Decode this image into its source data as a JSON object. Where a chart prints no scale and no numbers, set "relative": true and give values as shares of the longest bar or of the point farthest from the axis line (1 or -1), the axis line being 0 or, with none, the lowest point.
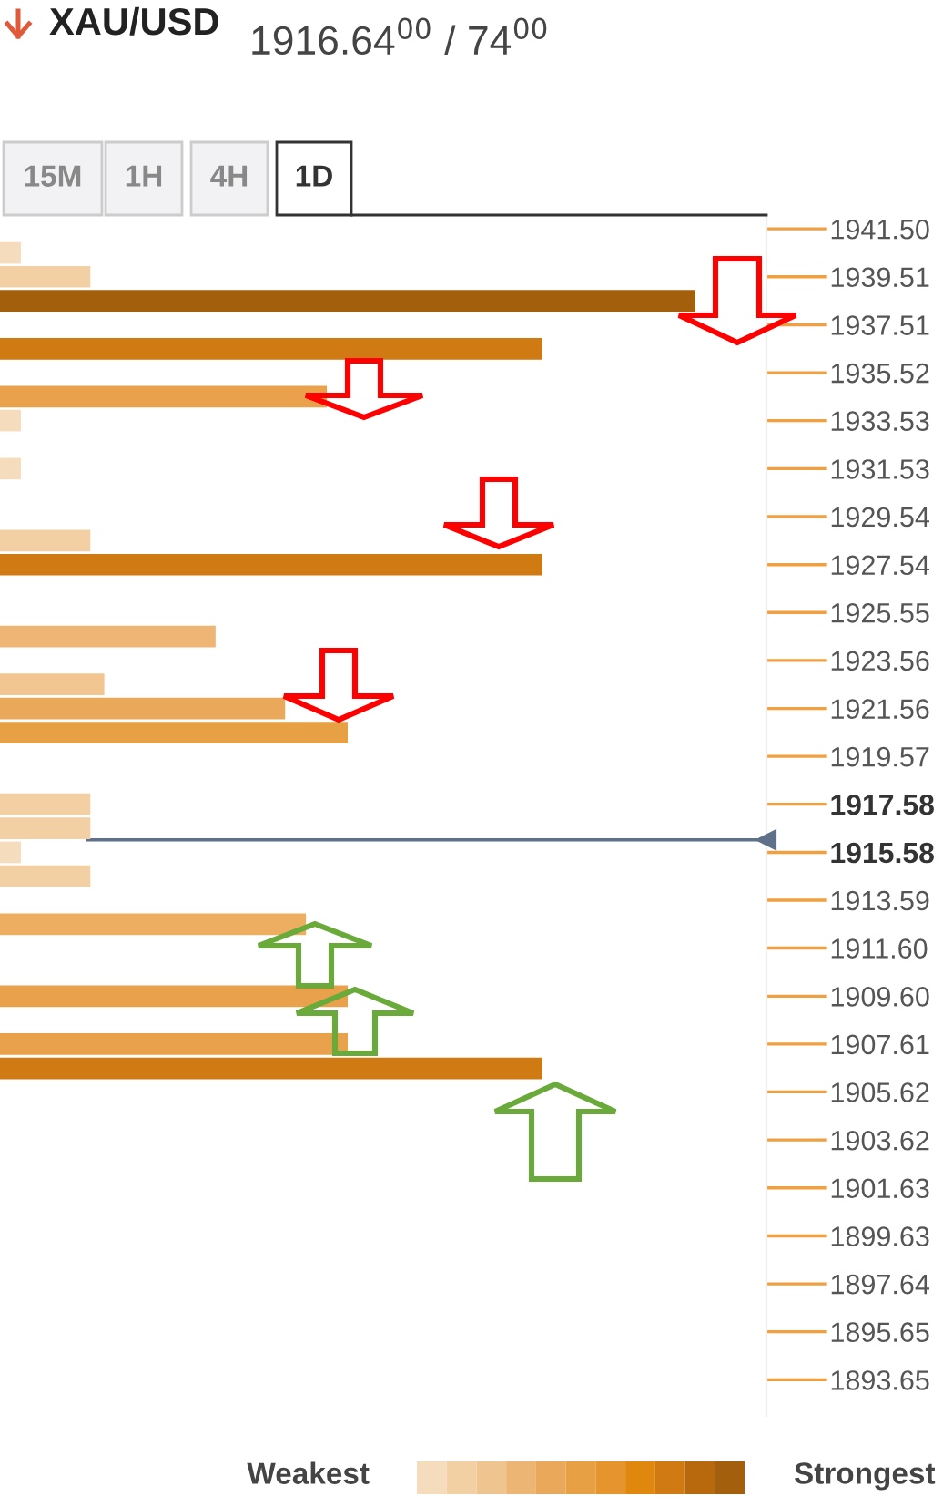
{
  "chart_data": {
    "type": "bar",
    "orientation": "horizontal",
    "relative": true,
    "title": "XAU/USD",
    "subtitle": "1916.64$^{00}$ / 74$^{00}$",
    "annotations": [
      "15M",
      "1H",
      "4H",
      "1D",
      "Weakest",
      "Strongest"
    ],
    "x": [
      1940.5,
      1939.51,
      1938.51,
      1936.51,
      1934.52,
      1933.53,
      1931.53,
      1928.54,
      1927.54,
      1924.55,
      1922.56,
      1921.56,
      1920.56,
      1917.58,
      1916.58,
      1915.58,
      1914.59,
      1912.59,
      1909.6,
      1907.61,
      1906.6
    ],
    "values": [
      0.03,
      0.13,
      1,
      0.78,
      0.47,
      0.03,
      0.03,
      0.13,
      0.78,
      0.31,
      0.15,
      0.41,
      0.5,
      0.13,
      0.13,
      0.03,
      0.13,
      0.44,
      0.5,
      0.5,
      0.78
    ],
    "colors": [
      "#f5dcbd",
      "#f3cfa4",
      "#a35f0b",
      "#cf7a12",
      "#e9a24b",
      "#f5dcbd",
      "#f5dcbd",
      "#f3cfa4",
      "#cf7a12",
      "#eeb574",
      "#f2c690",
      "#eaa95a",
      "#e8a044",
      "#f3cfa4",
      "#f3cfa4",
      "#f5dcbd",
      "#f3cfa4",
      "#edae62",
      "#e9a24b",
      "#e9a24b",
      "#cf7a12"
    ],
    "ylim": [
      1892.15,
      1942.0
    ],
    "yticks": [
      {
        "value": 1941.5,
        "label": "1941.50"
      },
      1939.51,
      1937.51,
      1935.52,
      1933.53,
      1931.53,
      1929.54,
      1927.54,
      1925.55,
      1923.56,
      1921.56,
      1919.57,
      1917.58,
      1915.58,
      1913.59,
      {
        "value": 1911.6,
        "label": "1911.60"
      },
      {
        "value": 1909.6,
        "label": "1909.60"
      },
      1907.61,
      1905.62,
      1903.62,
      1901.63,
      1899.63,
      1897.64,
      1895.65,
      1893.65
    ],
    "ref_lines": [
      {
        "axis": "y",
        "value": 1916.1,
        "color": "#5f7089"
      }
    ],
    "grid": false,
    "legend": false
  }
}
